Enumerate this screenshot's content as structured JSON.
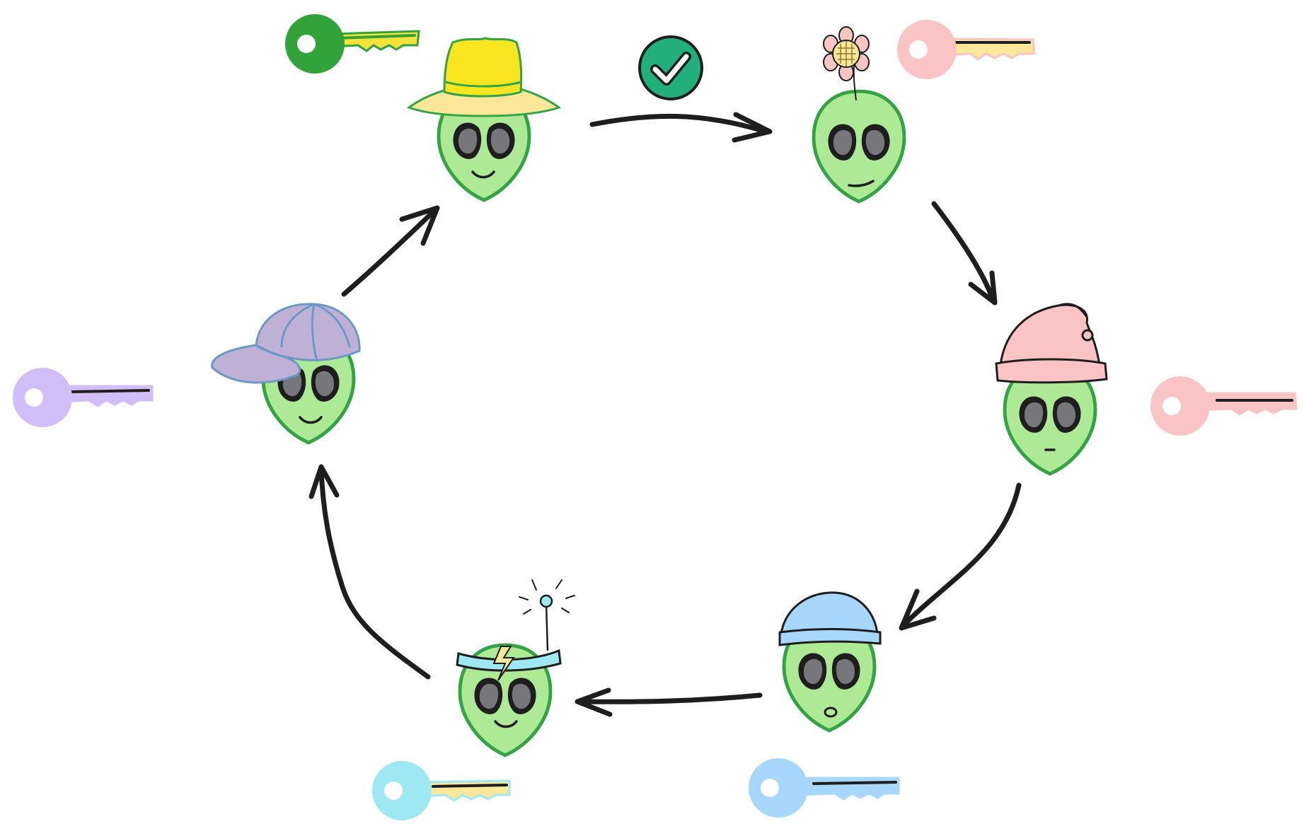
{
  "diagram": {
    "type": "cycle",
    "node_count": 6,
    "flow_direction": "clockwise",
    "status_icon": "check-circle-icon",
    "colors": {
      "alien_skin": "#aeea95",
      "alien_outline": "#33a345",
      "eye_inner": "#77777b",
      "arrow": "#1e1e1e",
      "check_badge": "#21b07b"
    },
    "nodes": [
      {
        "id": "yellow-fedora-alien",
        "hat": "yellow-fedora",
        "expression": "smile",
        "key_color": "#32a23a",
        "key_blade": "#f2e23a",
        "key_state": "green-yellow"
      },
      {
        "id": "flower-alien",
        "hat": "sunflower",
        "expression": "smirk",
        "key_color": "#fbc4c4",
        "key_blade": "#fbe79a",
        "key_state": "pink"
      },
      {
        "id": "pink-nightcap-alien",
        "hat": "pink-nightcap",
        "expression": "neutral",
        "key_color": "#fbc4c4",
        "key_blade": "#fbc4c4",
        "key_state": "pink"
      },
      {
        "id": "blue-beanie-alien",
        "hat": "blue-beanie",
        "expression": "surprised",
        "key_color": "#a7d7fc",
        "key_blade": "#a7d7fc",
        "key_state": "blue"
      },
      {
        "id": "antenna-alien",
        "hat": "lightning-headband",
        "expression": "smile",
        "key_color": "#9ee8f3",
        "key_blade": "#fbe79a",
        "key_state": "cyan-yellow"
      },
      {
        "id": "purple-cap-alien",
        "hat": "purple-cap",
        "expression": "smile",
        "key_color": "#d1bef9",
        "key_blade": "#d1bef9",
        "key_state": "purple"
      }
    ],
    "edges": [
      {
        "from": "yellow-fedora-alien",
        "to": "flower-alien",
        "badge": "check-circle-icon"
      },
      {
        "from": "flower-alien",
        "to": "pink-nightcap-alien"
      },
      {
        "from": "pink-nightcap-alien",
        "to": "blue-beanie-alien"
      },
      {
        "from": "blue-beanie-alien",
        "to": "antenna-alien"
      },
      {
        "from": "antenna-alien",
        "to": "purple-cap-alien"
      },
      {
        "from": "purple-cap-alien",
        "to": "yellow-fedora-alien"
      }
    ]
  }
}
